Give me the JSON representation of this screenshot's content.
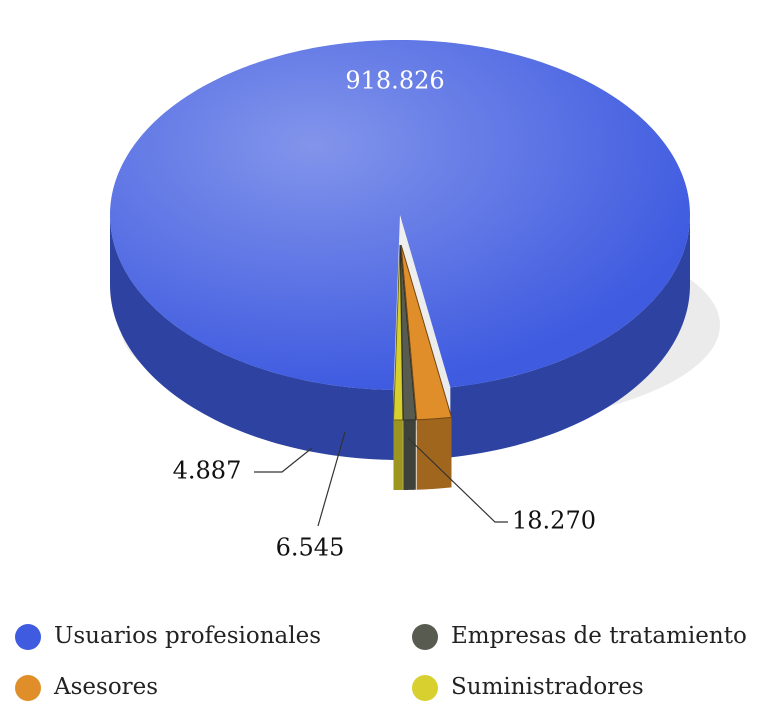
{
  "chart_data": {
    "type": "pie",
    "categories": [
      "Usuarios profesionales",
      "Asesores",
      "Empresas de tratamiento",
      "Suministradores"
    ],
    "values": [
      918826,
      18270,
      6545,
      4887
    ],
    "value_labels": [
      "918.826",
      "18.270",
      "6.545",
      "4.887"
    ],
    "colors": [
      "#3f5be0",
      "#e08e2a",
      "#585c50",
      "#d8d02e"
    ]
  }
}
